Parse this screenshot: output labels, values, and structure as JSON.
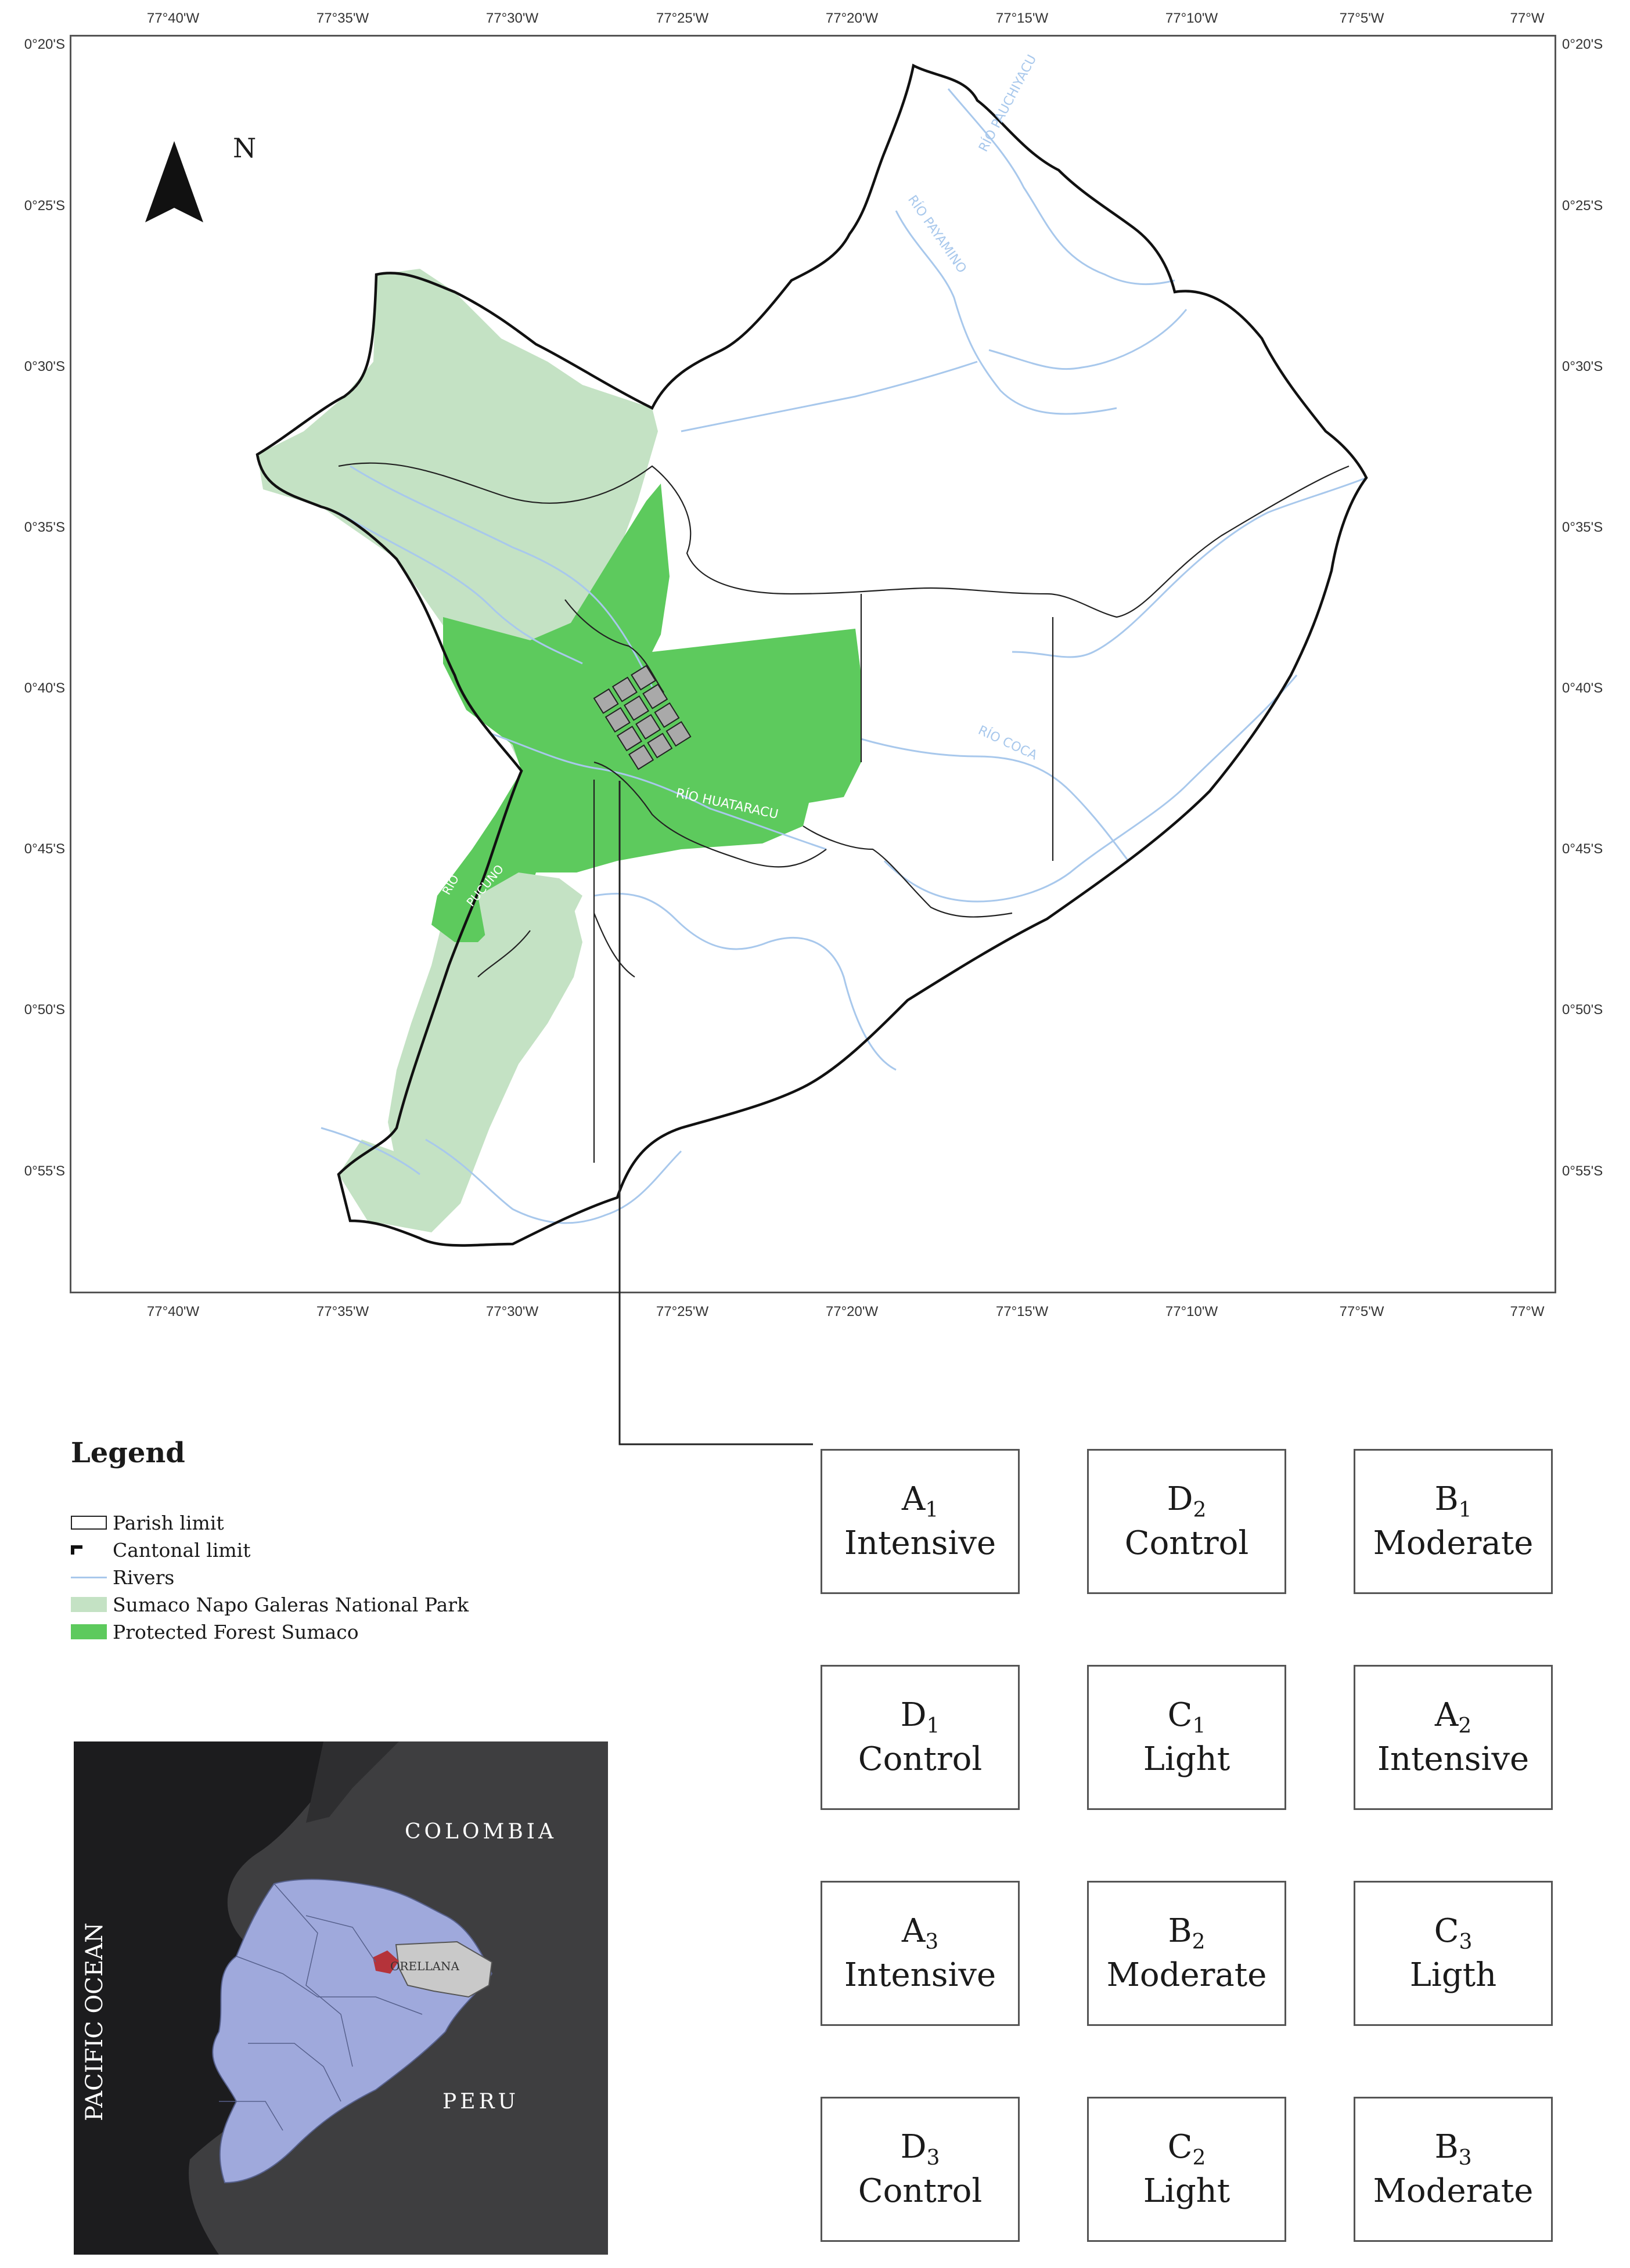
{
  "map": {
    "lon_ticks": [
      "77°40'W",
      "77°35'W",
      "77°30'W",
      "77°25'W",
      "77°20'W",
      "77°15'W",
      "77°10'W",
      "77°5'W",
      "77°W"
    ],
    "lon_ticks_top": [
      "77°40'W",
      "77°35'W",
      "77°30'W",
      "77°25'W",
      "77°20'W",
      "77°15'W",
      "77°10'W",
      "77°5'W",
      "77°W"
    ],
    "lat_ticks": [
      "0°20'S",
      "0°25'S",
      "0°30'S",
      "0°35'S",
      "0°40'S",
      "0°45'S",
      "0°50'S",
      "0°55'S"
    ],
    "north_label": "N",
    "river_labels": {
      "payamino": "RÍO PAYAMINO",
      "pucuno_upper": "RÍO PAUCHIYACU",
      "huataracu": "RÍO HUATARACU",
      "pucuno": "PUCUNO",
      "rio": "RIO",
      "coca": "RÍO COCA"
    },
    "colors": {
      "national_park": "#c4e2c4",
      "protected_forest": "#5dca5d",
      "rivers": "#a8c8ec",
      "boundary": "#111111",
      "plot_fill": "#a9a9a9"
    }
  },
  "legend": {
    "title": "Legend",
    "items": [
      {
        "label": "Parish limit",
        "kind": "box"
      },
      {
        "label": "Cantonal limit",
        "kind": "bracket"
      },
      {
        "label": "Rivers",
        "kind": "river"
      },
      {
        "label": "Sumaco Napo Galeras National Park",
        "kind": "park"
      },
      {
        "label": "Protected Forest Sumaco",
        "kind": "forest"
      }
    ]
  },
  "plots": [
    {
      "letter": "A",
      "num": "1",
      "treatment": "Intensive"
    },
    {
      "letter": "D",
      "num": "2",
      "treatment": "Control"
    },
    {
      "letter": "B",
      "num": "1",
      "treatment": "Moderate"
    },
    {
      "letter": "D",
      "num": "1",
      "treatment": "Control"
    },
    {
      "letter": "C",
      "num": "1",
      "treatment": "Light"
    },
    {
      "letter": "A",
      "num": "2",
      "treatment": "Intensive"
    },
    {
      "letter": "A",
      "num": "3",
      "treatment": "Intensive"
    },
    {
      "letter": "B",
      "num": "2",
      "treatment": "Moderate"
    },
    {
      "letter": "C",
      "num": "3",
      "treatment": "Ligth"
    },
    {
      "letter": "D",
      "num": "3",
      "treatment": "Control"
    },
    {
      "letter": "C",
      "num": "2",
      "treatment": "Light"
    },
    {
      "letter": "B",
      "num": "3",
      "treatment": "Moderate"
    }
  ],
  "inset": {
    "ocean": "PACIFIC OCEAN",
    "north_country": "COLOMBIA",
    "south_country": "PERU",
    "province": "ORELLANA",
    "colors": {
      "background": "#1c1c1e",
      "land": "#3e3e40",
      "ecuador": "#9fa9dc",
      "orellana": "#c9c9c9",
      "study": "#b5333a"
    }
  }
}
